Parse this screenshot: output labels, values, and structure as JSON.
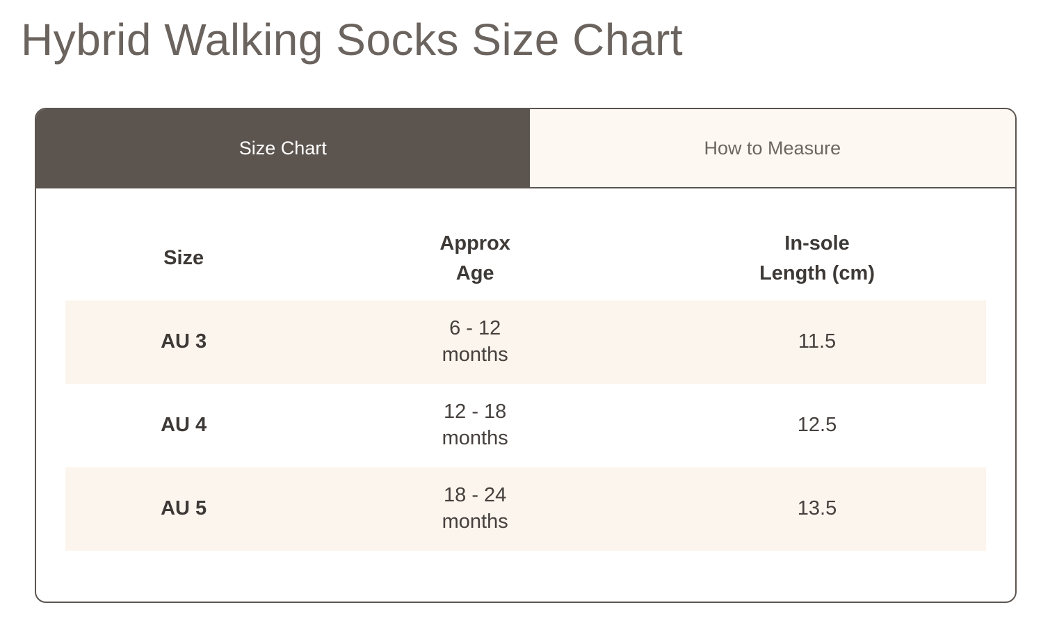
{
  "page": {
    "title": "Hybrid Walking Socks Size Chart"
  },
  "tabs": [
    {
      "label": "Size Chart",
      "active": true
    },
    {
      "label": "How to Measure",
      "active": false
    }
  ],
  "table": {
    "headers": [
      {
        "line1": "Size",
        "line2": ""
      },
      {
        "line1": "Approx",
        "line2": "Age"
      },
      {
        "line1": "In-sole",
        "line2": "Length (cm)"
      }
    ],
    "rows": [
      {
        "size": "AU 3",
        "age_range": "6 - 12",
        "age_unit": "months",
        "insole_length_cm": "11.5"
      },
      {
        "size": "AU 4",
        "age_range": "12 - 18",
        "age_unit": "months",
        "insole_length_cm": "12.5"
      },
      {
        "size": "AU 5",
        "age_range": "18 - 24",
        "age_unit": "months",
        "insole_length_cm": "13.5"
      }
    ]
  },
  "colors": {
    "tab_active_bg": "#5c544f",
    "tab_active_text": "#ffffff",
    "tab_inactive_bg": "#fdf8f2",
    "tab_inactive_text": "#6e6661",
    "row_stripe_bg": "#fcf5ed",
    "title_text": "#6b635e",
    "table_text": "#3d3936",
    "card_border": "#5c544f"
  }
}
